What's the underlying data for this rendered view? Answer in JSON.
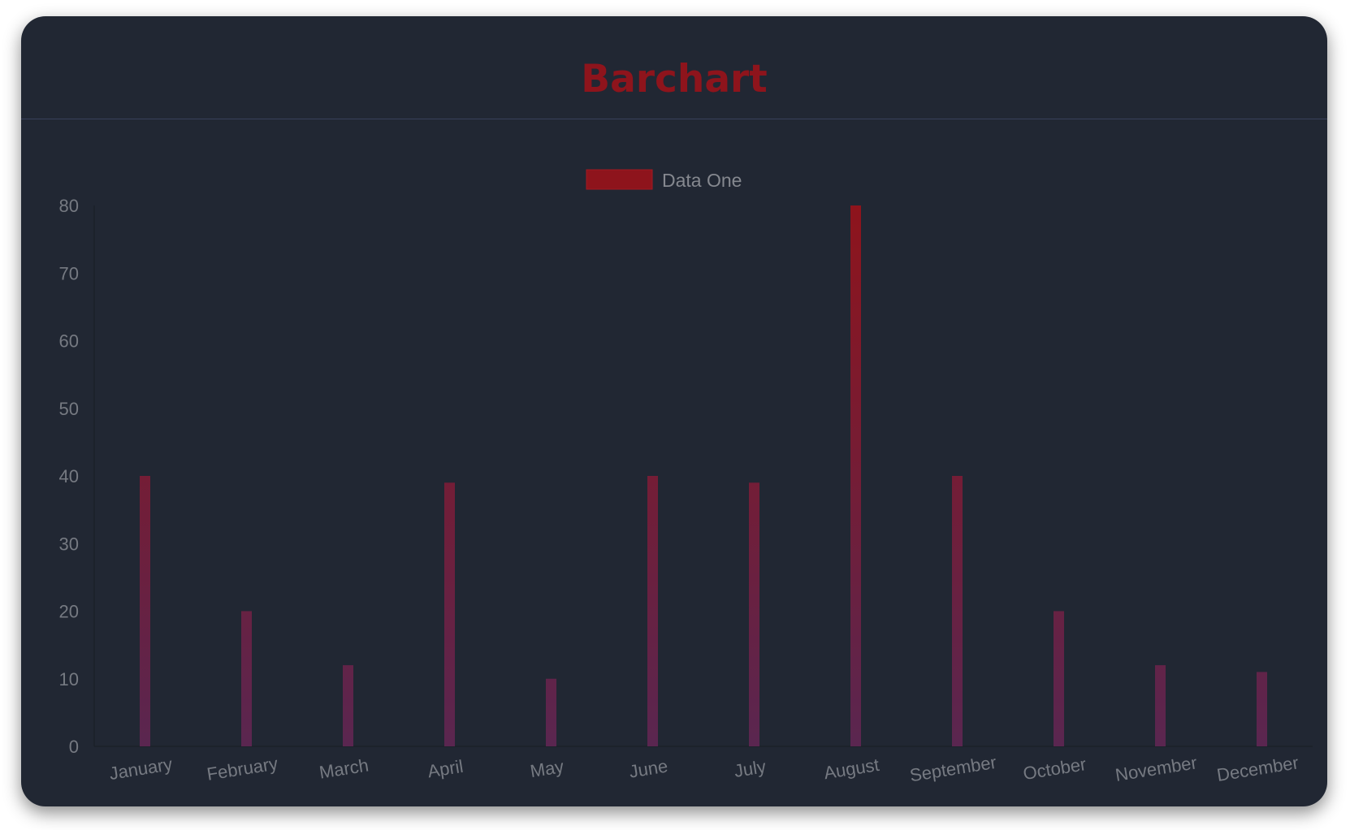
{
  "header": {
    "title": "Barchart"
  },
  "chart_data": {
    "type": "bar",
    "title": "",
    "categories": [
      "January",
      "February",
      "March",
      "April",
      "May",
      "June",
      "July",
      "August",
      "September",
      "October",
      "November",
      "December"
    ],
    "series": [
      {
        "name": "Data One",
        "values": [
          40,
          20,
          12,
          39,
          10,
          40,
          39,
          80,
          40,
          20,
          12,
          11
        ]
      }
    ],
    "ylim": [
      0,
      80
    ],
    "yticks": [
      "0",
      "10",
      "20",
      "30",
      "40",
      "50",
      "60",
      "70",
      "80"
    ],
    "legend": "top-center",
    "grid": false,
    "colors": {
      "bar_top": "#8e141c",
      "bar_bottom": "#5a2650",
      "legend_swatch": "#8e141c",
      "background": "#212733",
      "title": "#8e141c"
    }
  }
}
